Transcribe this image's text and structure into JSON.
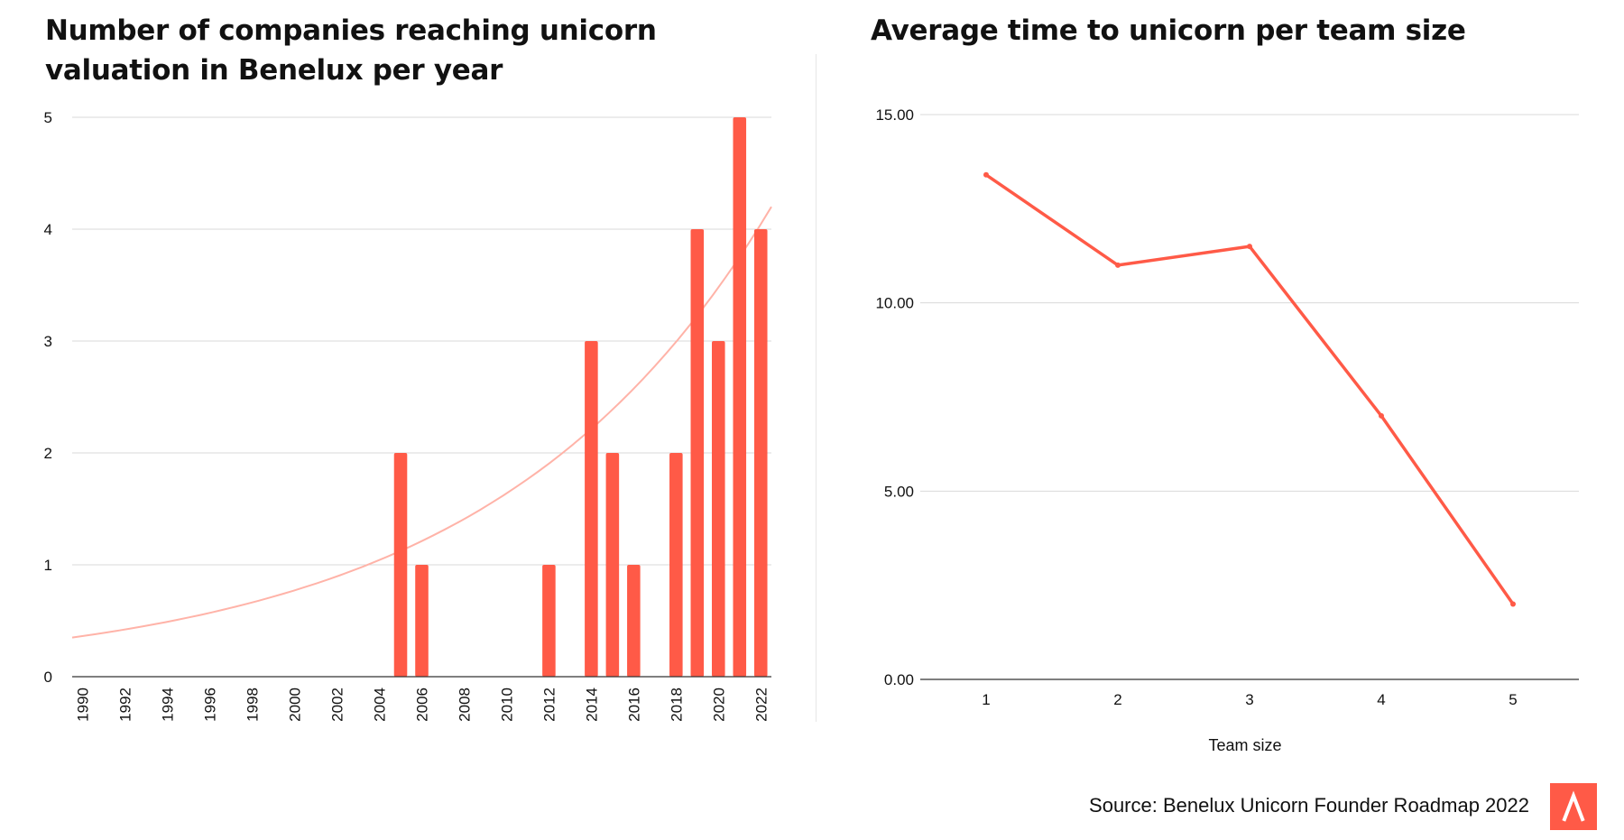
{
  "colors": {
    "accent": "#ff5a47",
    "trend": "#ffb3a8",
    "grid": "#d9d9d9",
    "axis": "#333333",
    "text": "#111111"
  },
  "chart_data": [
    {
      "type": "bar",
      "title": "Number of companies reaching unicorn valuation in Benelux per year",
      "xlabel": "",
      "ylabel": "",
      "categories": [
        1990,
        1991,
        1992,
        1993,
        1994,
        1995,
        1996,
        1997,
        1998,
        1999,
        2000,
        2001,
        2002,
        2003,
        2004,
        2005,
        2006,
        2007,
        2008,
        2009,
        2010,
        2011,
        2012,
        2013,
        2014,
        2015,
        2016,
        2017,
        2018,
        2019,
        2020,
        2021,
        2022
      ],
      "values": [
        0,
        0,
        0,
        0,
        0,
        0,
        0,
        0,
        0,
        0,
        0,
        0,
        0,
        0,
        0,
        2,
        1,
        0,
        0,
        0,
        0,
        0,
        1,
        0,
        3,
        2,
        1,
        0,
        2,
        4,
        3,
        5,
        4
      ],
      "x_tick_labels": [
        "1990",
        "1992",
        "1994",
        "1996",
        "1998",
        "2000",
        "2002",
        "2004",
        "2006",
        "2008",
        "2010",
        "2012",
        "2014",
        "2016",
        "2018",
        "2020",
        "2022"
      ],
      "y_ticks": [
        "0",
        "1",
        "2",
        "3",
        "4",
        "5"
      ],
      "ylim": [
        0,
        5
      ],
      "trendline": {
        "type": "exponential",
        "start_value": 0.35,
        "end_value": 4.2
      },
      "grid": true
    },
    {
      "type": "line",
      "title": "Average time to unicorn per team size",
      "xlabel": "Team size",
      "ylabel": "",
      "x": [
        1,
        2,
        3,
        4,
        5
      ],
      "x_tick_labels": [
        "1",
        "2",
        "3",
        "4",
        "5"
      ],
      "values": [
        13.4,
        11.0,
        11.5,
        7.0,
        2.0
      ],
      "y_ticks": [
        "0.00",
        "5.00",
        "10.00",
        "15.00"
      ],
      "ylim": [
        0,
        15
      ],
      "grid": true
    }
  ],
  "footer": {
    "source": "Source: Benelux Unicorn Founder Roadmap 2022",
    "logo_glyph": "Λ"
  }
}
